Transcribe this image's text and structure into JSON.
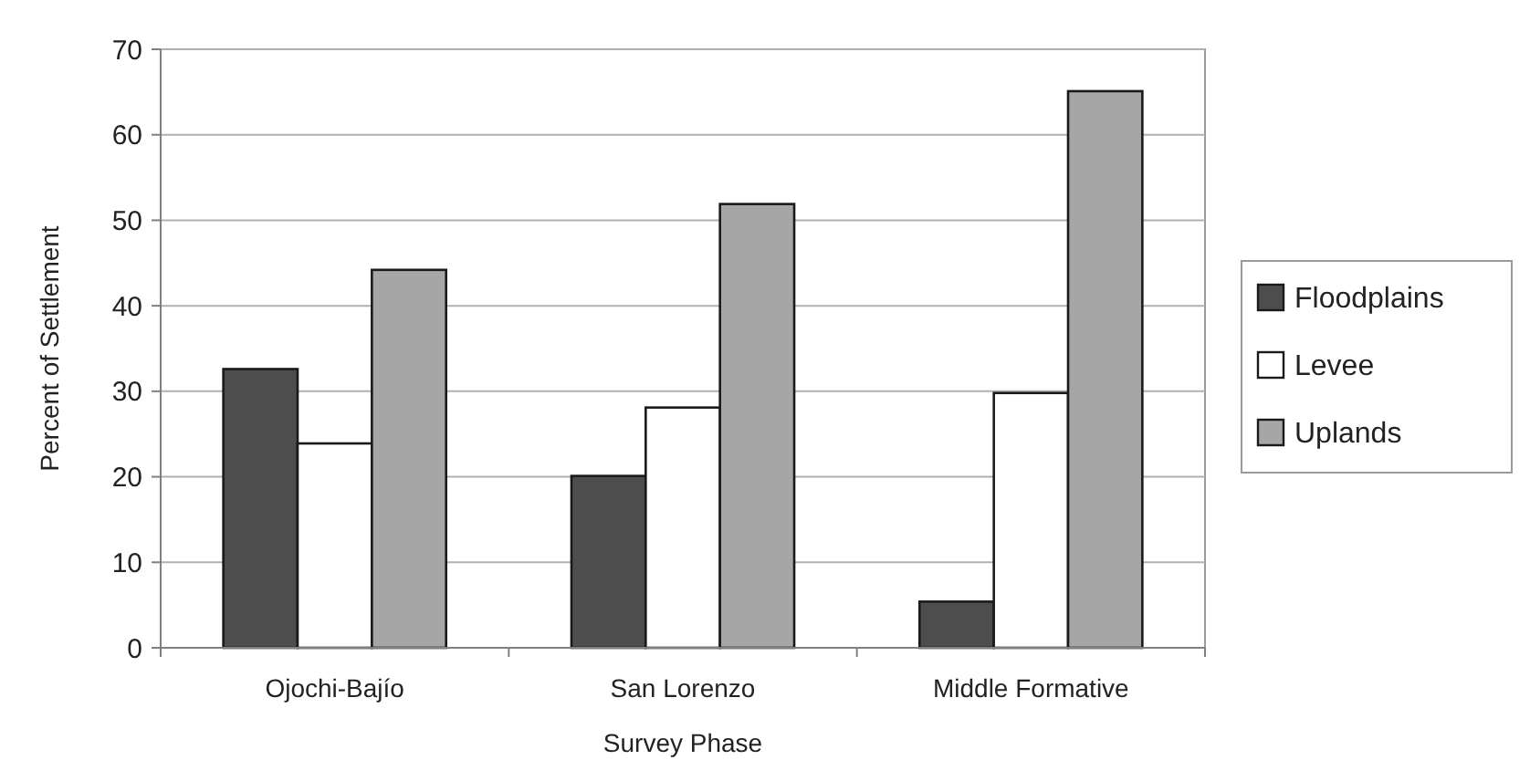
{
  "chart_data": {
    "type": "bar",
    "xlabel": "Survey Phase",
    "ylabel": "Percent of Settlement",
    "categories": [
      "Ojochi-Bajío",
      "San Lorenzo",
      "Middle Formative"
    ],
    "series": [
      {
        "name": "Floodplains",
        "color": "#4d4d4d",
        "values": [
          32.6,
          20.1,
          5.4
        ]
      },
      {
        "name": "Levee",
        "color": "#ffffff",
        "values": [
          23.9,
          28.1,
          29.8
        ]
      },
      {
        "name": "Uplands",
        "color": "#a6a6a6",
        "values": [
          44.2,
          51.9,
          65.1
        ]
      }
    ],
    "ylim": [
      0,
      70
    ],
    "yticks": [
      0,
      10,
      20,
      30,
      40,
      50,
      60,
      70
    ],
    "grid": "y",
    "legend": "right"
  }
}
